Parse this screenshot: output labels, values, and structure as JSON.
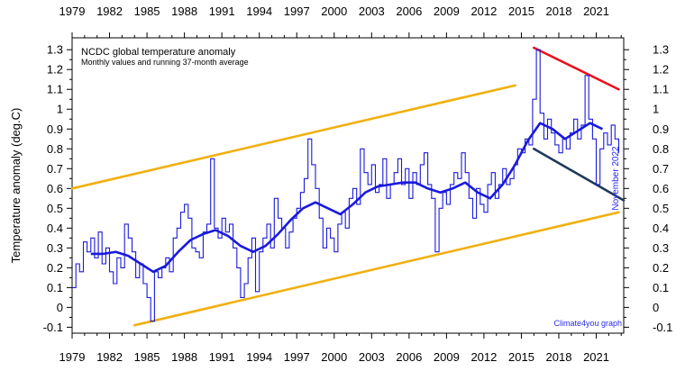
{
  "chart_data": {
    "type": "line",
    "title": "NCDC global temperature anomaly",
    "subtitle": "Monthly values and running 37-month average",
    "ylabel": "Temperature anomaly (deg.C)",
    "xlabel": "",
    "date_label": "November 2022",
    "credit": "Climate4you graph",
    "xlim": [
      1979,
      2023.2
    ],
    "ylim": [
      -0.13,
      1.36
    ],
    "x_ticks": [
      1979,
      1982,
      1985,
      1988,
      1991,
      1994,
      1997,
      2000,
      2003,
      2006,
      2009,
      2012,
      2015,
      2018,
      2021
    ],
    "y_ticks": [
      -0.1,
      0,
      0.1,
      0.2,
      0.3,
      0.4,
      0.5,
      0.6,
      0.7,
      0.8,
      0.9,
      1,
      1.1,
      1.2,
      1.3
    ],
    "y_tick_labels": [
      "-0.1",
      "0",
      "0.1",
      "0.2",
      "0.3",
      "0.4",
      "0.5",
      "0.6",
      "0.7",
      "0.8",
      "0.9",
      "1",
      "1.1",
      "1.2",
      "1.3"
    ],
    "grid": false,
    "series": [
      {
        "color": "#1a1adc",
        "style": "monthly",
        "x": [
          1979.0,
          1979.3,
          1979.6,
          1979.9,
          1980.2,
          1980.5,
          1980.8,
          1981.1,
          1981.4,
          1981.7,
          1982.0,
          1982.3,
          1982.6,
          1982.9,
          1983.2,
          1983.5,
          1983.8,
          1984.1,
          1984.4,
          1984.7,
          1985.0,
          1985.3,
          1985.6,
          1985.9,
          1986.2,
          1986.5,
          1986.8,
          1987.1,
          1987.4,
          1987.7,
          1988.0,
          1988.3,
          1988.6,
          1988.9,
          1989.2,
          1989.5,
          1989.8,
          1990.1,
          1990.4,
          1990.7,
          1991.0,
          1991.3,
          1991.6,
          1991.9,
          1992.2,
          1992.5,
          1992.8,
          1993.1,
          1993.4,
          1993.7,
          1994.0,
          1994.3,
          1994.6,
          1994.9,
          1995.2,
          1995.5,
          1995.8,
          1996.1,
          1996.4,
          1996.7,
          1997.0,
          1997.3,
          1997.6,
          1997.9,
          1998.2,
          1998.5,
          1998.8,
          1999.1,
          1999.4,
          1999.7,
          2000.0,
          2000.3,
          2000.6,
          2000.9,
          2001.2,
          2001.5,
          2001.8,
          2002.1,
          2002.4,
          2002.7,
          2003.0,
          2003.3,
          2003.6,
          2003.9,
          2004.2,
          2004.5,
          2004.8,
          2005.1,
          2005.4,
          2005.7,
          2006.0,
          2006.3,
          2006.6,
          2006.9,
          2007.2,
          2007.5,
          2007.8,
          2008.1,
          2008.4,
          2008.7,
          2009.0,
          2009.3,
          2009.6,
          2009.9,
          2010.2,
          2010.5,
          2010.8,
          2011.1,
          2011.4,
          2011.7,
          2012.0,
          2012.3,
          2012.6,
          2012.9,
          2013.2,
          2013.5,
          2013.8,
          2014.1,
          2014.4,
          2014.7,
          2015.0,
          2015.3,
          2015.6,
          2015.9,
          2016.2,
          2016.5,
          2016.8,
          2017.1,
          2017.4,
          2017.7,
          2018.0,
          2018.3,
          2018.6,
          2018.9,
          2019.2,
          2019.5,
          2019.8,
          2020.1,
          2020.4,
          2020.7,
          2021.0,
          2021.3,
          2021.6,
          2021.9,
          2022.2,
          2022.5,
          2022.8
        ],
        "values": [
          0.1,
          0.22,
          0.18,
          0.33,
          0.28,
          0.35,
          0.25,
          0.38,
          0.22,
          0.3,
          0.18,
          0.12,
          0.25,
          0.2,
          0.42,
          0.35,
          0.28,
          0.15,
          0.22,
          0.12,
          0.05,
          -0.07,
          0.18,
          0.15,
          0.2,
          0.25,
          0.18,
          0.35,
          0.4,
          0.48,
          0.52,
          0.45,
          0.3,
          0.28,
          0.25,
          0.38,
          0.42,
          0.75,
          0.4,
          0.35,
          0.45,
          0.38,
          0.42,
          0.3,
          0.2,
          0.05,
          0.12,
          0.25,
          0.35,
          0.08,
          0.28,
          0.35,
          0.42,
          0.3,
          0.55,
          0.45,
          0.4,
          0.3,
          0.38,
          0.45,
          0.5,
          0.58,
          0.65,
          0.85,
          0.72,
          0.6,
          0.45,
          0.3,
          0.4,
          0.35,
          0.28,
          0.42,
          0.48,
          0.4,
          0.55,
          0.6,
          0.52,
          0.8,
          0.68,
          0.62,
          0.72,
          0.58,
          0.62,
          0.75,
          0.55,
          0.62,
          0.68,
          0.75,
          0.62,
          0.7,
          0.55,
          0.68,
          0.62,
          0.72,
          0.78,
          0.62,
          0.55,
          0.28,
          0.5,
          0.58,
          0.52,
          0.62,
          0.68,
          0.65,
          0.78,
          0.68,
          0.55,
          0.45,
          0.6,
          0.52,
          0.48,
          0.62,
          0.68,
          0.55,
          0.62,
          0.7,
          0.62,
          0.65,
          0.72,
          0.8,
          0.78,
          0.85,
          0.82,
          1.05,
          1.3,
          0.98,
          0.85,
          0.95,
          0.88,
          0.82,
          0.78,
          0.85,
          0.8,
          0.88,
          0.95,
          0.85,
          0.92,
          1.17,
          0.95,
          0.85,
          0.62,
          0.8,
          0.88,
          0.82,
          0.92,
          0.85,
          0.78
        ]
      },
      {
        "color": "#1a1adc",
        "style": "running-mean",
        "x": [
          1980.5,
          1981.5,
          1982.5,
          1983.5,
          1984.5,
          1985.5,
          1986.5,
          1987.5,
          1988.5,
          1989.5,
          1990.5,
          1991.5,
          1992.5,
          1993.5,
          1994.5,
          1995.5,
          1996.5,
          1997.5,
          1998.5,
          1999.5,
          2000.5,
          2001.5,
          2002.5,
          2003.5,
          2004.5,
          2005.5,
          2006.5,
          2007.5,
          2008.5,
          2009.5,
          2010.5,
          2011.5,
          2012.5,
          2013.5,
          2014.5,
          2015.5,
          2016.5,
          2017.5,
          2018.5,
          2019.5,
          2020.5,
          2021.5
        ],
        "values": [
          0.27,
          0.27,
          0.28,
          0.26,
          0.22,
          0.18,
          0.21,
          0.28,
          0.34,
          0.37,
          0.39,
          0.36,
          0.31,
          0.28,
          0.31,
          0.37,
          0.44,
          0.5,
          0.53,
          0.5,
          0.47,
          0.52,
          0.58,
          0.61,
          0.62,
          0.63,
          0.63,
          0.6,
          0.58,
          0.6,
          0.63,
          0.58,
          0.55,
          0.62,
          0.72,
          0.84,
          0.93,
          0.9,
          0.85,
          0.89,
          0.93,
          0.9
        ]
      }
    ],
    "trend_lines": [
      {
        "color": "#f0b010",
        "x": [
          1979.0,
          2014.5
        ],
        "values": [
          0.6,
          1.12
        ]
      },
      {
        "color": "#f0b010",
        "x": [
          1984.0,
          2022.8
        ],
        "values": [
          -0.09,
          0.48
        ]
      },
      {
        "color": "#e8121e",
        "x": [
          2016.0,
          2022.8
        ],
        "values": [
          1.31,
          1.1
        ]
      },
      {
        "color": "#1d3a5c",
        "x": [
          2016.0,
          2023.2
        ],
        "values": [
          0.8,
          0.54
        ]
      }
    ]
  }
}
